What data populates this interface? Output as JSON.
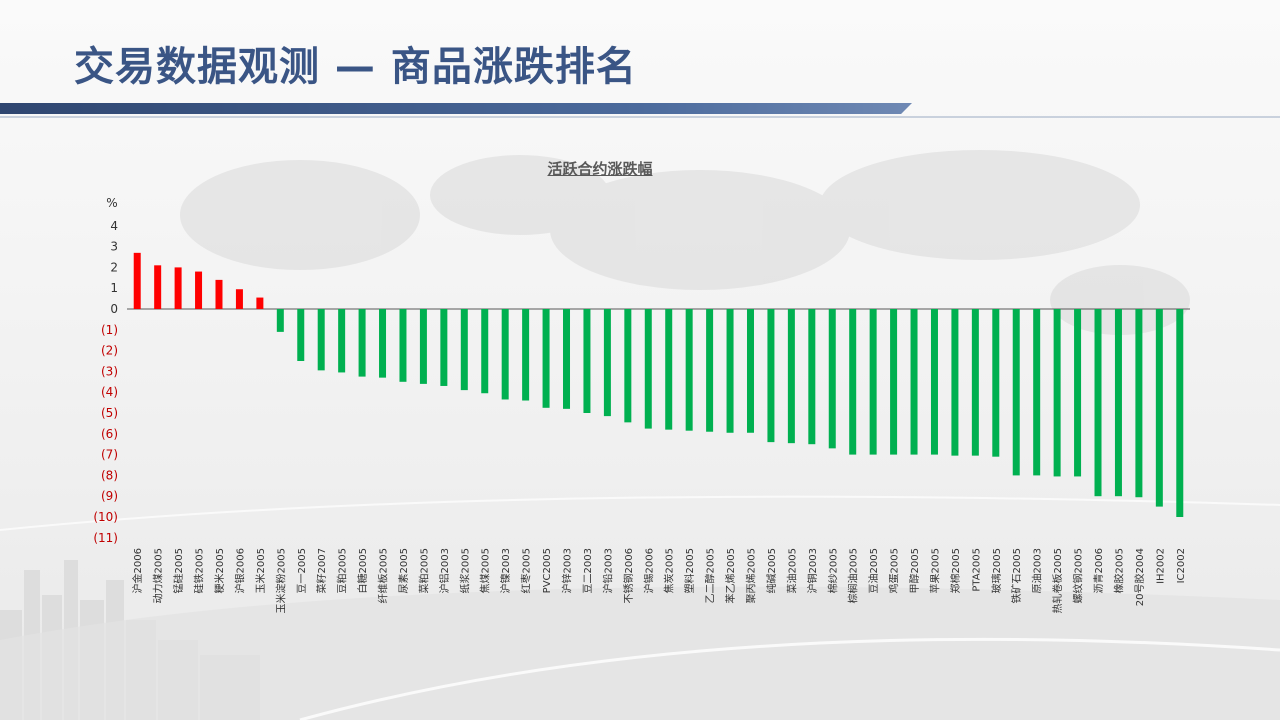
{
  "slide": {
    "title": "交易数据观测 — 商品涨跌排名"
  },
  "colors": {
    "up": "#ff0000",
    "down": "#00b050",
    "title": "#3a5585",
    "negative_tick": "#c00000"
  },
  "chart_data": {
    "type": "bar",
    "title": "活跃合约涨跌幅",
    "ylabel": "%",
    "ylim": [
      -11,
      4
    ],
    "yticks": [
      {
        "value": 4,
        "label": "4"
      },
      {
        "value": 3,
        "label": "3"
      },
      {
        "value": 2,
        "label": "2"
      },
      {
        "value": 1,
        "label": "1"
      },
      {
        "value": 0,
        "label": "0"
      },
      {
        "value": -1,
        "label": "(1)"
      },
      {
        "value": -2,
        "label": "(2)"
      },
      {
        "value": -3,
        "label": "(3)"
      },
      {
        "value": -4,
        "label": "(4)"
      },
      {
        "value": -5,
        "label": "(5)"
      },
      {
        "value": -6,
        "label": "(6)"
      },
      {
        "value": -7,
        "label": "(7)"
      },
      {
        "value": -8,
        "label": "(8)"
      },
      {
        "value": -9,
        "label": "(9)"
      },
      {
        "value": -10,
        "label": "(10)"
      },
      {
        "value": -11,
        "label": "(11)"
      }
    ],
    "grid": false,
    "legend": "none",
    "categories": [
      "沪金2006",
      "动力煤2005",
      "锰硅2005",
      "硅铁2005",
      "粳米2005",
      "沪银2006",
      "玉米2005",
      "玉米淀粉2005",
      "豆一2005",
      "菜籽2007",
      "豆粕2005",
      "白糖2005",
      "纤维板2005",
      "尿素2005",
      "菜粕2005",
      "沪铝2003",
      "纸浆2005",
      "焦煤2005",
      "沪镍2003",
      "红枣2005",
      "PVC2005",
      "沪锌2003",
      "豆二2003",
      "沪铅2003",
      "不锈钢2006",
      "沪锡2006",
      "焦炭2005",
      "塑料2005",
      "乙二醇2005",
      "苯乙烯2005",
      "聚丙烯2005",
      "纯碱2005",
      "菜油2005",
      "沪铜2003",
      "棉纱2005",
      "棕榈油2005",
      "豆油2005",
      "鸡蛋2005",
      "甲醇2005",
      "苹果2005",
      "郑棉2005",
      "PTA2005",
      "玻璃2005",
      "铁矿石2005",
      "原油2003",
      "热轧卷板2005",
      "螺纹钢2005",
      "沥青2006",
      "橡胶2005",
      "20号胶2004",
      "IH2002",
      "IC2002"
    ],
    "values": [
      2.7,
      2.1,
      2.0,
      1.8,
      1.4,
      0.95,
      0.55,
      -1.1,
      -2.5,
      -2.95,
      -3.05,
      -3.25,
      -3.3,
      -3.5,
      -3.6,
      -3.7,
      -3.9,
      -4.05,
      -4.35,
      -4.4,
      -4.75,
      -4.8,
      -5.0,
      -5.15,
      -5.45,
      -5.75,
      -5.8,
      -5.85,
      -5.9,
      -5.95,
      -5.95,
      -6.4,
      -6.45,
      -6.5,
      -6.7,
      -7.0,
      -7.0,
      -7.0,
      -7.0,
      -7.0,
      -7.05,
      -7.05,
      -7.1,
      -8.0,
      -8.0,
      -8.05,
      -8.05,
      -9.0,
      -9.0,
      -9.05,
      -9.5,
      -10.0
    ]
  }
}
